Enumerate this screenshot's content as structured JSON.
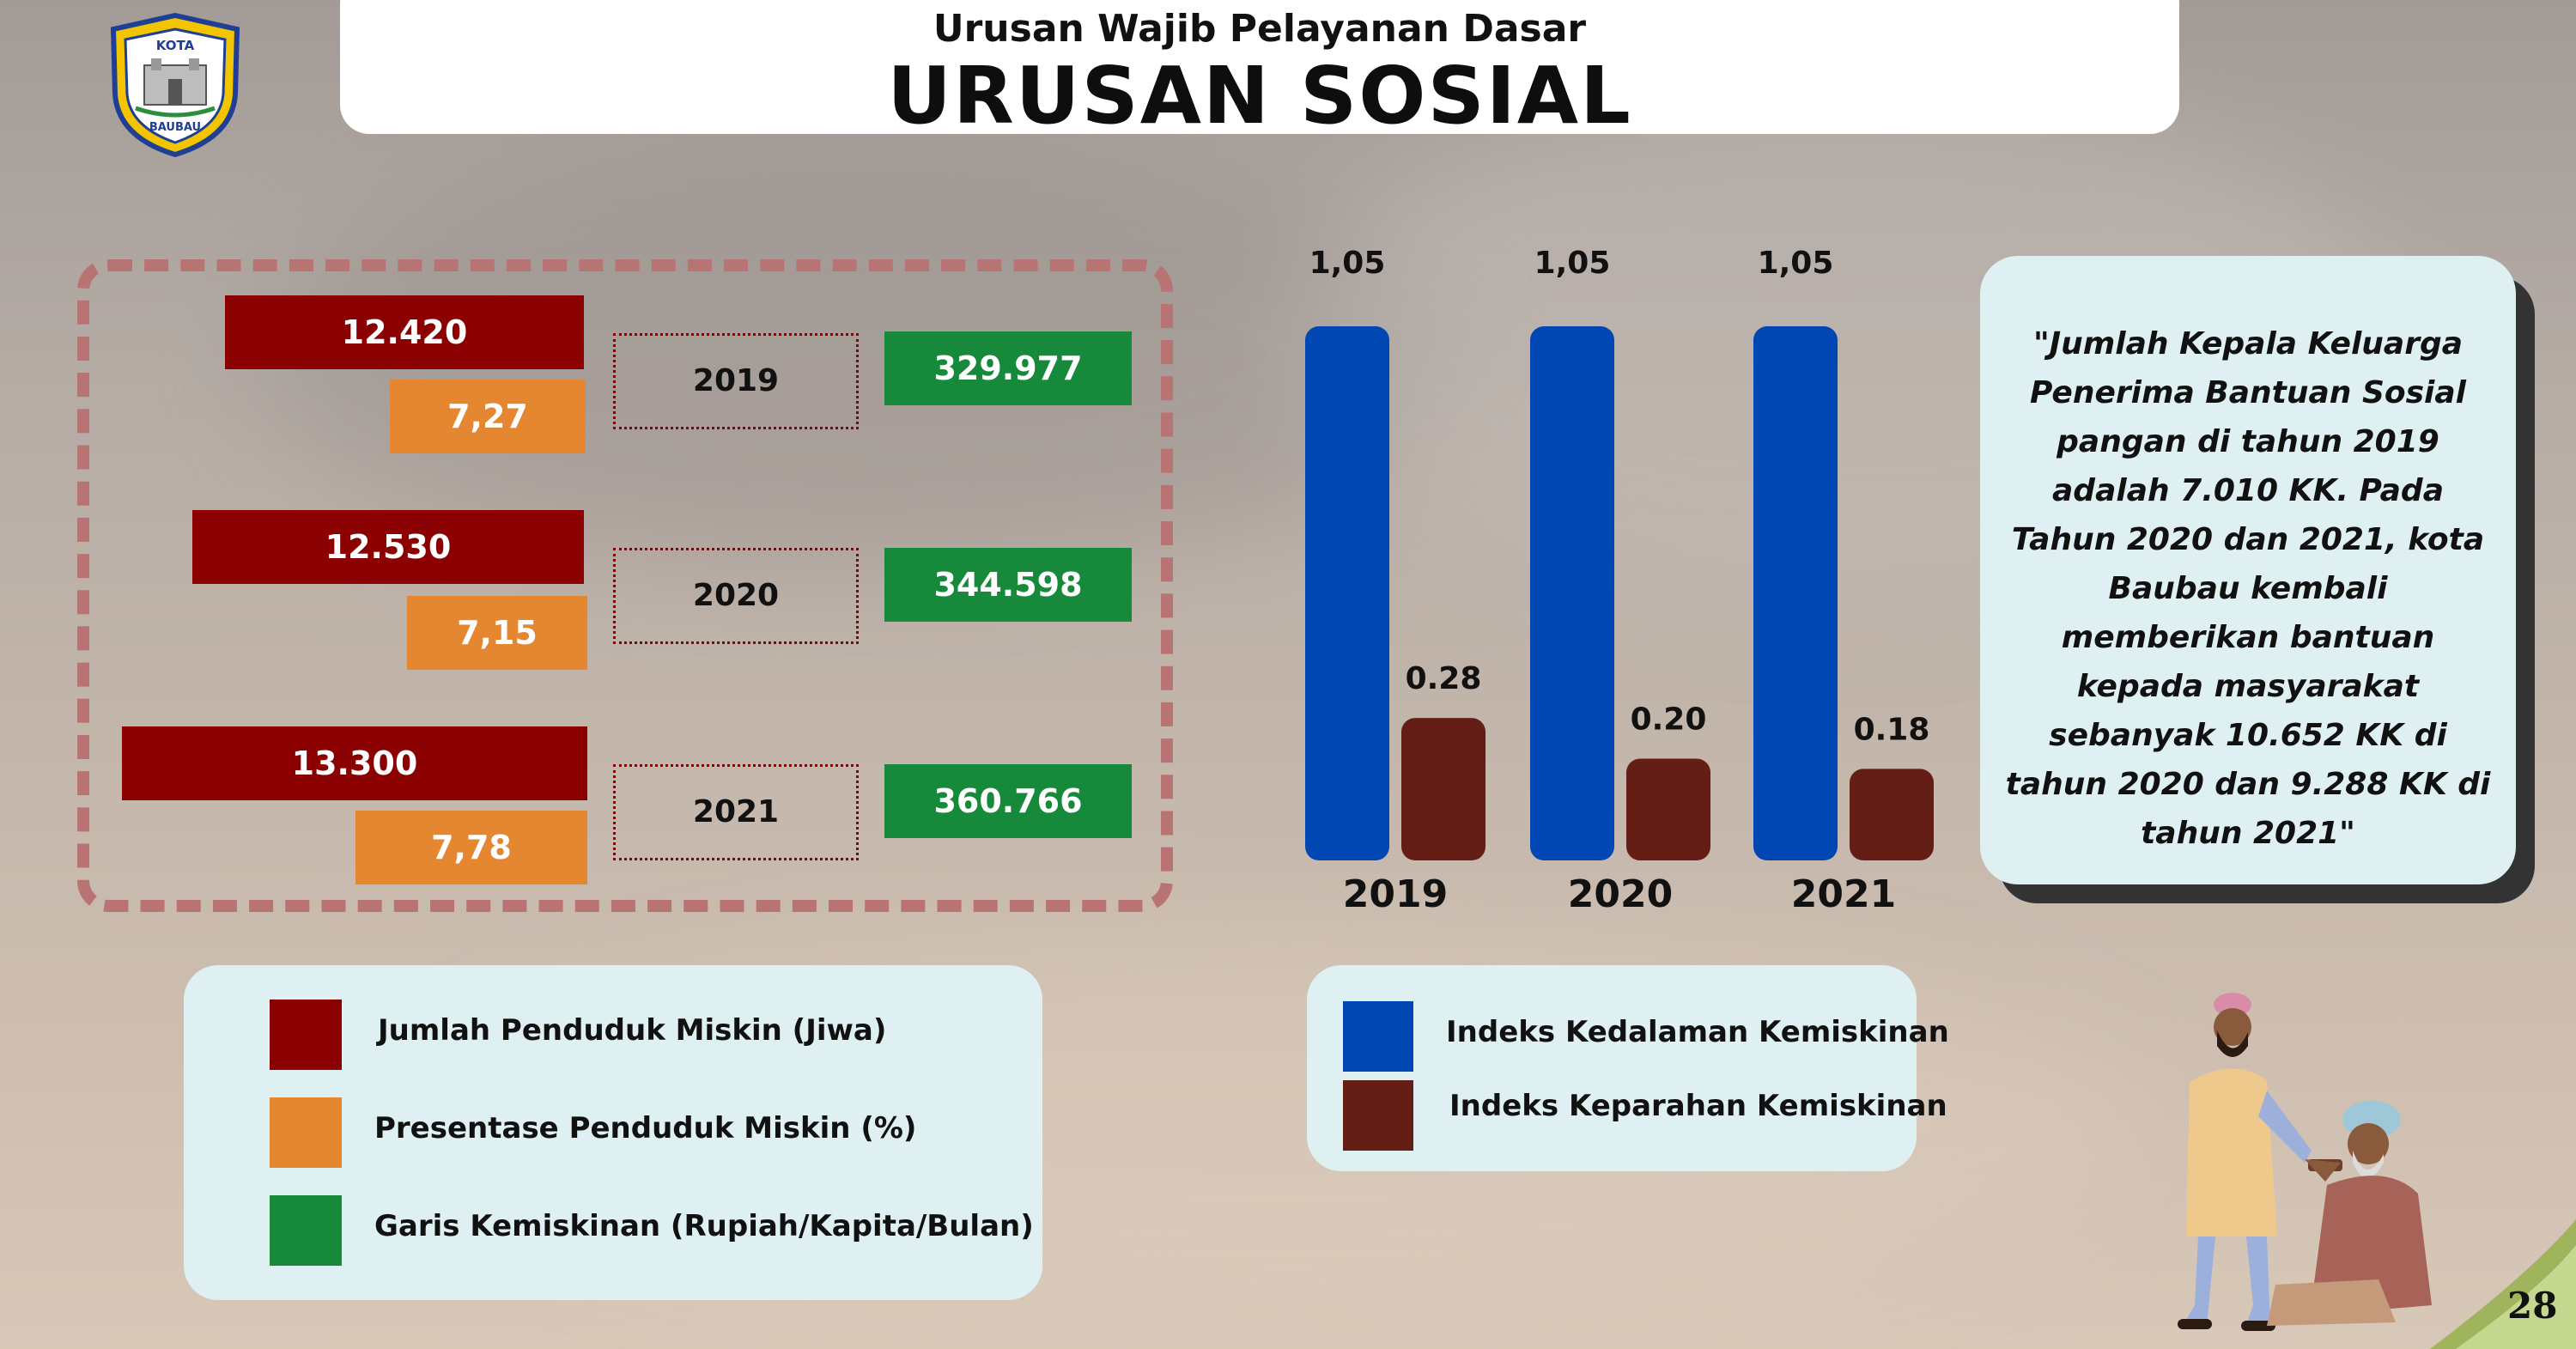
{
  "header": {
    "subtitle": "Urusan Wajib Pelayanan Dasar",
    "title": "URUSAN SOSIAL",
    "logo_text_top": "KOTA",
    "logo_text_bottom": "BAUBAU"
  },
  "poverty_panel": {
    "rows": [
      {
        "year": "2019",
        "population": "12.420",
        "percentage": "7,27",
        "poverty_line": "329.977"
      },
      {
        "year": "2020",
        "population": "12.530",
        "percentage": "7,15",
        "poverty_line": "344.598"
      },
      {
        "year": "2021",
        "population": "13.300",
        "percentage": "7,78",
        "poverty_line": "360.766"
      }
    ]
  },
  "legend_left": {
    "items": [
      {
        "label": "Jumlah Penduduk Miskin (Jiwa)",
        "color": "#8b0000"
      },
      {
        "label": "Presentase Penduduk Miskin  (%)",
        "color": "#e58630"
      },
      {
        "label": "Garis Kemiskinan (Rupiah/Kapita/Bulan)",
        "color": "#168a3a"
      }
    ]
  },
  "chart_data": {
    "type": "bar",
    "categories": [
      "2019",
      "2020",
      "2021"
    ],
    "series": [
      {
        "name": "Indeks Kedalaman Kemiskinan",
        "values": [
          1.05,
          1.05,
          1.05
        ],
        "labels": [
          "1,05",
          "1,05",
          "1,05"
        ],
        "color": "#0047b3"
      },
      {
        "name": "Indeks Keparahan Kemiskinan",
        "values": [
          0.28,
          0.2,
          0.18
        ],
        "labels": [
          "0.28",
          "0.20",
          "0.18"
        ],
        "color": "#641e16"
      }
    ],
    "title": "",
    "xlabel": "",
    "ylabel": "",
    "ylim": [
      0,
      1.05
    ],
    "grid": false
  },
  "legend_right": {
    "items": [
      {
        "label": "Indeks Kedalaman Kemiskinan",
        "color": "#0047b3"
      },
      {
        "label": "Indeks Keparahan Kemiskinan",
        "color": "#641e16"
      }
    ]
  },
  "quote": {
    "text": "\"Jumlah Kepala Keluarga Penerima Bantuan Sosial pangan di tahun 2019 adalah 7.010 KK. Pada Tahun 2020 dan 2021, kota Baubau kembali memberikan bantuan kepada masyarakat sebanyak 10.652 KK di tahun 2020 dan 9.288 KK di tahun 2021\""
  },
  "page_number": "28"
}
